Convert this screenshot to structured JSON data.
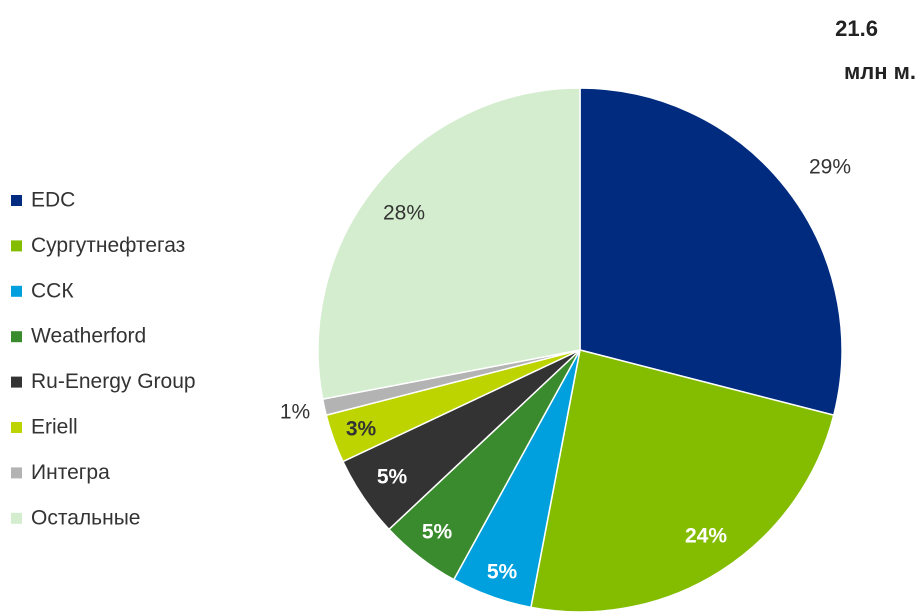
{
  "chart_data": {
    "type": "pie",
    "title": "21.6",
    "subtitle": "млн м.",
    "categories": [
      "EDC",
      "Сургутнефтегаз",
      "ССК",
      "Weatherford",
      "Ru-Energy Group",
      "Eriell",
      "Интегра",
      "Остальные"
    ],
    "values": [
      29,
      24,
      5,
      5,
      5,
      3,
      1,
      28
    ],
    "value_labels": [
      "29%",
      "24%",
      "5%",
      "5%",
      "5%",
      "3%",
      "1%",
      "28%"
    ],
    "colors": [
      "#002b7f",
      "#84bd00",
      "#00a0df",
      "#3a8a2e",
      "#333333",
      "#bdd400",
      "#b3b3b3",
      "#d4edcf"
    ],
    "legend": "left"
  }
}
